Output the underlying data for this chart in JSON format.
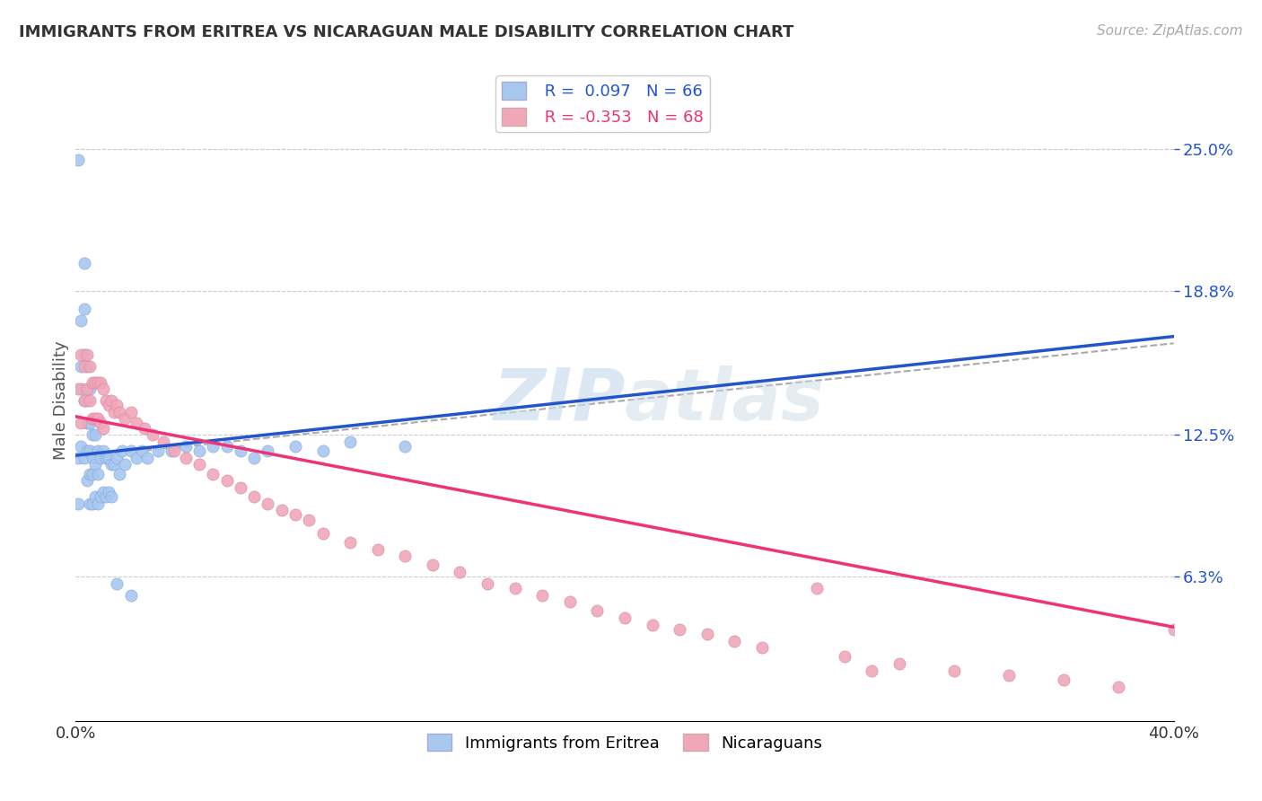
{
  "title": "IMMIGRANTS FROM ERITREA VS NICARAGUAN MALE DISABILITY CORRELATION CHART",
  "source": "Source: ZipAtlas.com",
  "ylabel": "Male Disability",
  "right_yticks": [
    "25.0%",
    "18.8%",
    "12.5%",
    "6.3%"
  ],
  "right_ytick_vals": [
    0.25,
    0.188,
    0.125,
    0.063
  ],
  "xmin": 0.0,
  "xmax": 0.4,
  "ymin": 0.0,
  "ymax": 0.28,
  "R_blue": 0.097,
  "N_blue": 66,
  "R_pink": -0.353,
  "N_pink": 68,
  "blue_color": "#a8c8f0",
  "pink_color": "#f0a8b8",
  "blue_line_color": "#2255cc",
  "pink_line_color": "#ee3377",
  "legend_label_blue": "Immigrants from Eritrea",
  "legend_label_pink": "Nicaraguans",
  "background_color": "#ffffff",
  "blue_scatter_x": [
    0.001,
    0.001,
    0.001,
    0.002,
    0.002,
    0.002,
    0.002,
    0.003,
    0.003,
    0.003,
    0.003,
    0.003,
    0.004,
    0.004,
    0.004,
    0.004,
    0.004,
    0.005,
    0.005,
    0.005,
    0.005,
    0.005,
    0.006,
    0.006,
    0.006,
    0.006,
    0.007,
    0.007,
    0.007,
    0.008,
    0.008,
    0.008,
    0.009,
    0.009,
    0.01,
    0.01,
    0.011,
    0.011,
    0.012,
    0.012,
    0.013,
    0.013,
    0.014,
    0.015,
    0.016,
    0.017,
    0.018,
    0.02,
    0.022,
    0.024,
    0.026,
    0.03,
    0.035,
    0.04,
    0.045,
    0.05,
    0.055,
    0.06,
    0.065,
    0.07,
    0.08,
    0.09,
    0.1,
    0.12,
    0.015,
    0.02
  ],
  "blue_scatter_y": [
    0.245,
    0.115,
    0.095,
    0.175,
    0.155,
    0.145,
    0.12,
    0.2,
    0.18,
    0.16,
    0.14,
    0.115,
    0.155,
    0.14,
    0.13,
    0.118,
    0.105,
    0.145,
    0.13,
    0.118,
    0.108,
    0.095,
    0.125,
    0.115,
    0.108,
    0.095,
    0.125,
    0.112,
    0.098,
    0.118,
    0.108,
    0.095,
    0.115,
    0.098,
    0.118,
    0.1,
    0.115,
    0.098,
    0.115,
    0.1,
    0.112,
    0.098,
    0.112,
    0.115,
    0.108,
    0.118,
    0.112,
    0.118,
    0.115,
    0.118,
    0.115,
    0.118,
    0.118,
    0.12,
    0.118,
    0.12,
    0.12,
    0.118,
    0.115,
    0.118,
    0.12,
    0.118,
    0.122,
    0.12,
    0.06,
    0.055
  ],
  "pink_scatter_x": [
    0.001,
    0.002,
    0.002,
    0.003,
    0.003,
    0.004,
    0.004,
    0.005,
    0.005,
    0.006,
    0.006,
    0.007,
    0.007,
    0.008,
    0.008,
    0.009,
    0.009,
    0.01,
    0.01,
    0.011,
    0.012,
    0.013,
    0.014,
    0.015,
    0.016,
    0.018,
    0.02,
    0.022,
    0.025,
    0.028,
    0.032,
    0.036,
    0.04,
    0.045,
    0.05,
    0.055,
    0.06,
    0.065,
    0.07,
    0.075,
    0.08,
    0.085,
    0.09,
    0.1,
    0.11,
    0.12,
    0.13,
    0.14,
    0.15,
    0.16,
    0.17,
    0.18,
    0.19,
    0.2,
    0.21,
    0.22,
    0.23,
    0.24,
    0.25,
    0.28,
    0.3,
    0.32,
    0.34,
    0.36,
    0.38,
    0.4,
    0.27,
    0.29
  ],
  "pink_scatter_y": [
    0.145,
    0.16,
    0.13,
    0.155,
    0.14,
    0.16,
    0.145,
    0.155,
    0.14,
    0.148,
    0.132,
    0.148,
    0.132,
    0.148,
    0.132,
    0.148,
    0.13,
    0.145,
    0.128,
    0.14,
    0.138,
    0.14,
    0.135,
    0.138,
    0.135,
    0.132,
    0.135,
    0.13,
    0.128,
    0.125,
    0.122,
    0.118,
    0.115,
    0.112,
    0.108,
    0.105,
    0.102,
    0.098,
    0.095,
    0.092,
    0.09,
    0.088,
    0.082,
    0.078,
    0.075,
    0.072,
    0.068,
    0.065,
    0.06,
    0.058,
    0.055,
    0.052,
    0.048,
    0.045,
    0.042,
    0.04,
    0.038,
    0.035,
    0.032,
    0.028,
    0.025,
    0.022,
    0.02,
    0.018,
    0.015,
    0.04,
    0.058,
    0.022
  ]
}
